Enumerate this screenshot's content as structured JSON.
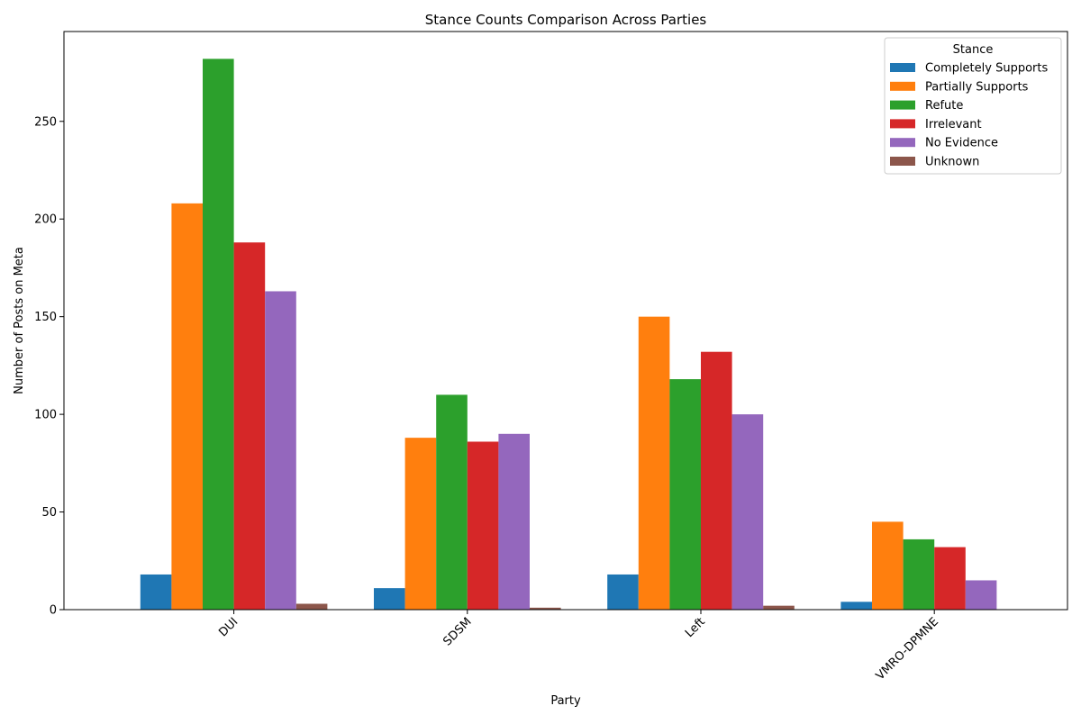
{
  "chart_data": {
    "type": "bar",
    "title": "Stance Counts Comparison Across Parties",
    "xlabel": "Party",
    "ylabel": "Number of Posts on Meta",
    "categories": [
      "DUI",
      "SDSM",
      "Left",
      "VMRO-DPMNE"
    ],
    "ylim": [
      0,
      296
    ],
    "yticks": [
      0,
      50,
      100,
      150,
      200,
      250
    ],
    "legend": {
      "title": "Stance",
      "placement": "top-right"
    },
    "series": [
      {
        "name": "Completely Supports",
        "color": "#1f77b4",
        "values": [
          18,
          11,
          18,
          4
        ]
      },
      {
        "name": "Partially Supports",
        "color": "#ff7f0e",
        "values": [
          208,
          88,
          150,
          45
        ]
      },
      {
        "name": "Refute",
        "color": "#2ca02c",
        "values": [
          282,
          110,
          118,
          36
        ]
      },
      {
        "name": "Irrelevant",
        "color": "#d62728",
        "values": [
          188,
          86,
          132,
          32
        ]
      },
      {
        "name": "No Evidence",
        "color": "#9467bd",
        "values": [
          163,
          90,
          100,
          15
        ]
      },
      {
        "name": "Unknown",
        "color": "#8c564b",
        "values": [
          3,
          1,
          2,
          0
        ]
      }
    ]
  }
}
